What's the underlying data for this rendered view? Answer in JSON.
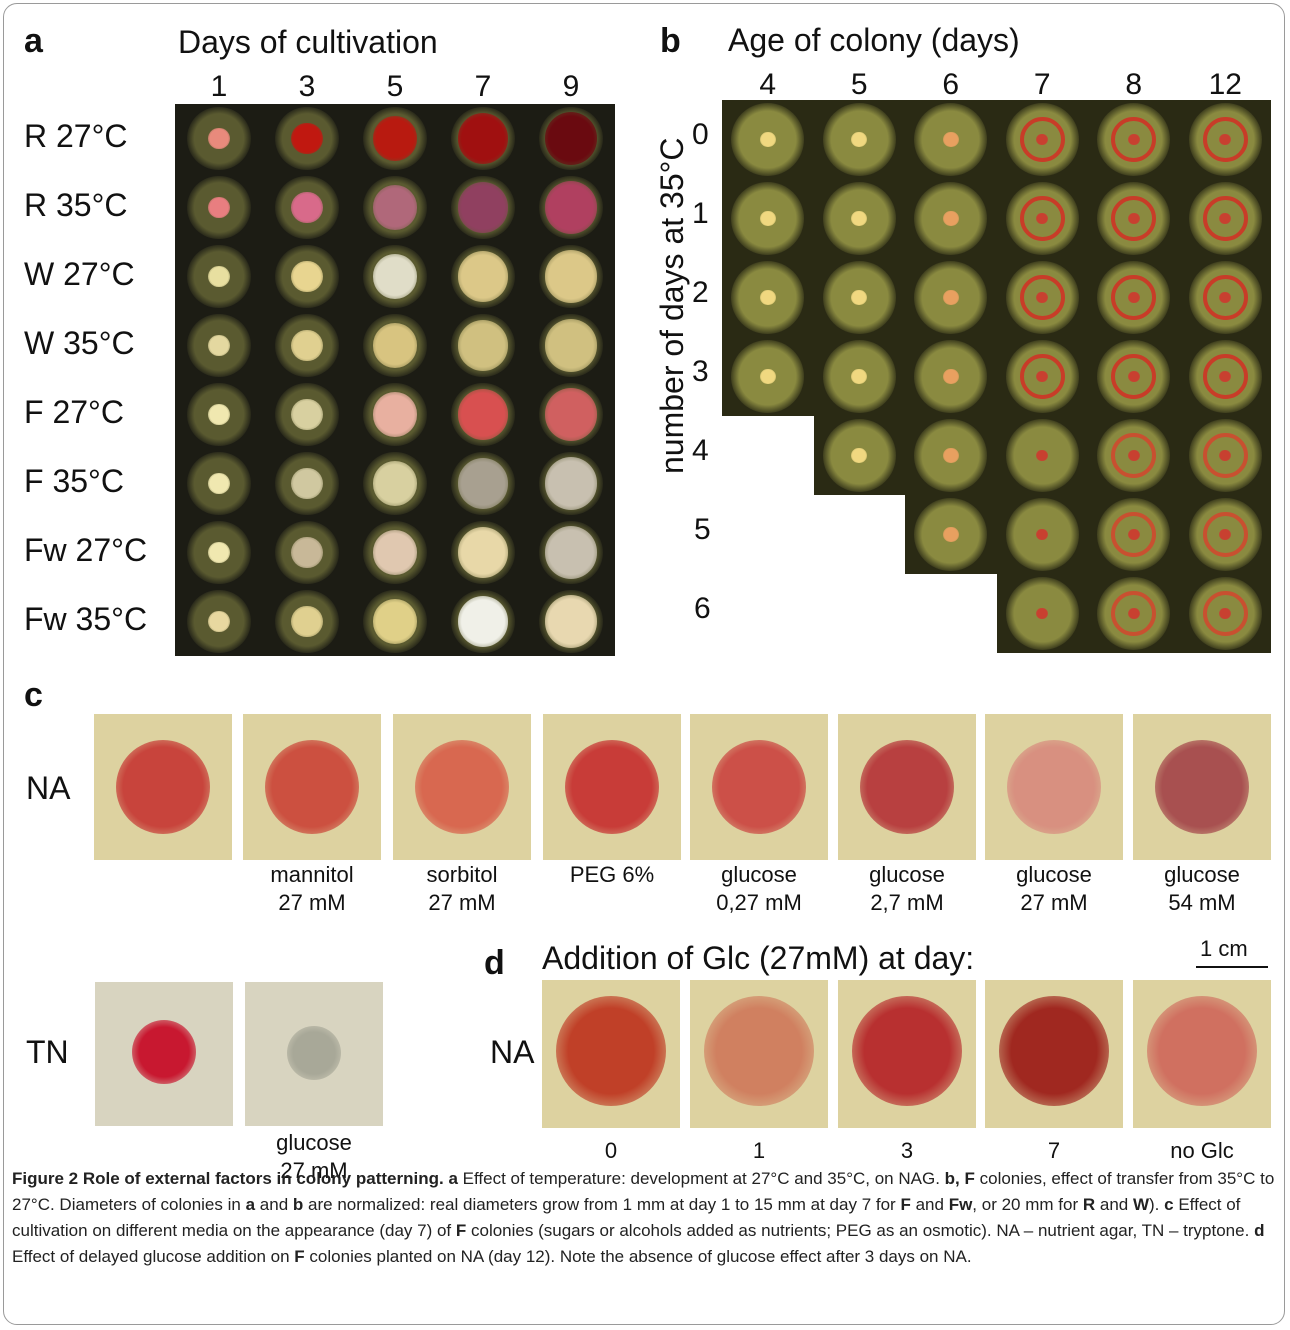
{
  "panel_a": {
    "letter": "a",
    "title": "Days of cultivation",
    "columns": [
      "1",
      "3",
      "5",
      "7",
      "9"
    ],
    "rows": [
      "R 27°C",
      "R 35°C",
      "W 27°C",
      "W 35°C",
      "F 27°C",
      "F 35°C",
      "Fw 27°C",
      "Fw 35°C"
    ]
  },
  "panel_b": {
    "letter": "b",
    "title": "Age of colony (days)",
    "columns": [
      "4",
      "5",
      "6",
      "7",
      "8",
      "12"
    ],
    "y_label": "number of days at 35°C",
    "rows": [
      "0",
      "1",
      "2",
      "3",
      "4",
      "5",
      "6"
    ]
  },
  "panel_c": {
    "letter": "c",
    "row_na": "NA",
    "row_tn": "TN",
    "na_labels": [
      {
        "line1": "",
        "line2": ""
      },
      {
        "line1": "mannitol",
        "line2": "27 mM"
      },
      {
        "line1": "sorbitol",
        "line2": "27 mM"
      },
      {
        "line1": "PEG 6%",
        "line2": ""
      },
      {
        "line1": "glucose",
        "line2": "0,27 mM"
      },
      {
        "line1": "glucose",
        "line2": "2,7 mM"
      },
      {
        "line1": "glucose",
        "line2": "27 mM"
      },
      {
        "line1": "glucose",
        "line2": "54 mM"
      }
    ],
    "tn_labels": [
      {
        "line1": "",
        "line2": ""
      },
      {
        "line1": "glucose",
        "line2": "27 mM"
      }
    ]
  },
  "panel_d": {
    "letter": "d",
    "title": "Addition of Glc (27mM) at day:",
    "scale_bar": "1 cm",
    "row_na": "NA",
    "labels": [
      "0",
      "1",
      "3",
      "7",
      "no Glc"
    ]
  },
  "caption": {
    "figure": "Figure 2",
    "title": "Role of external factors in colony patterning.",
    "a_letter": "a",
    "a_text": "Effect of temperature: development at 27°C and 35°C, on NAG.",
    "bF": "b, F",
    "b_text1": "colonies, effect of transfer from 35°C to 27°C. Diameters of colonies in",
    "a2": "a",
    "and1": "and",
    "b2": "b",
    "b_text2": "are normalized: real diameters grow from 1 mm at day 1 to 15 mm at day 7 for",
    "F1": "F",
    "and2": "and",
    "Fw": "Fw",
    "or_text": ", or 20 mm for",
    "R": "R",
    "and3": "and",
    "W": "W",
    "close1": ").",
    "c_letter": "c",
    "c_text1": "Effect of cultivation on different media on the appearance (day 7) of",
    "F2": "F",
    "c_text2": "colonies (sugars or alcohols added as nutrients; PEG as an osmotic). NA – nutrient agar, TN – tryptone.",
    "d_letter": "d",
    "d_text1": "Effect of delayed glucose addition on",
    "F3": "F",
    "d_text2": "colonies planted on NA (day 12). Note the absence of glucose effect after 3 days on NA."
  }
}
